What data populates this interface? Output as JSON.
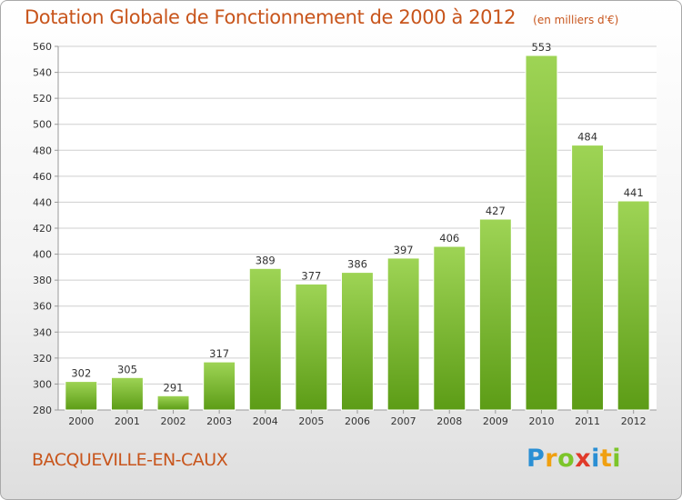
{
  "title": "Dotation Globale de Fonctionnement de 2000 à 2012",
  "subtitle": "(en milliers d'€)",
  "commune": "BACQUEVILLE-EN-CAUX",
  "logo": {
    "letters": [
      "P",
      "r",
      "o",
      "x",
      "i",
      "t",
      "i"
    ],
    "colors": [
      "#2a8fd4",
      "#f0a010",
      "#7cc52a",
      "#e03a2a",
      "#2a8fd4",
      "#f0a010",
      "#7cc52a"
    ]
  },
  "colors": {
    "title": "#c8551c",
    "bar_top": "#9ed455",
    "bar_bottom": "#5c9c16",
    "grid": "#cfcfcf",
    "plot_bg": "#ffffff"
  },
  "chart_data": {
    "type": "bar",
    "categories": [
      "2000",
      "2001",
      "2002",
      "2003",
      "2004",
      "2005",
      "2006",
      "2007",
      "2008",
      "2009",
      "2010",
      "2011",
      "2012"
    ],
    "values": [
      302,
      305,
      291,
      317,
      389,
      377,
      386,
      397,
      406,
      427,
      553,
      484,
      441
    ],
    "ylim": [
      280,
      560
    ],
    "yticks": [
      280,
      300,
      320,
      340,
      360,
      380,
      400,
      420,
      440,
      460,
      480,
      500,
      520,
      540,
      560
    ],
    "grid": true,
    "data_labels": true
  }
}
